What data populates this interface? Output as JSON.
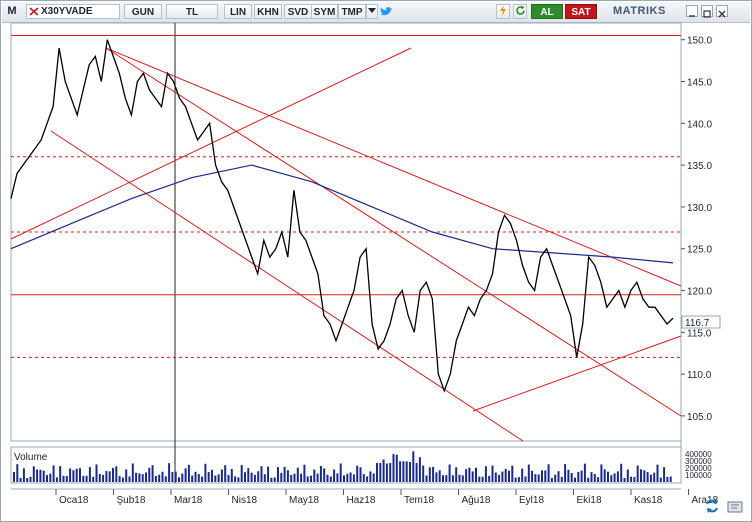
{
  "toolbar": {
    "logo": "M",
    "symbol": "X30YVADE",
    "period": "GUN",
    "currency": "TL",
    "buttons": [
      "LIN",
      "KHN",
      "SVD",
      "SYM",
      "TMP"
    ],
    "buy_label": "AL",
    "sell_label": "SAT",
    "brand": "MATRIKS"
  },
  "colors": {
    "candle": "#000000",
    "ma": "#1a2a8a",
    "trend": "#d42020",
    "buy": "#2e8b2e",
    "sell": "#c0161b"
  },
  "chart_data": {
    "type": "line",
    "y_ticks": [
      150,
      145,
      140,
      135,
      130,
      125,
      120,
      115,
      110,
      105
    ],
    "ylim": [
      102,
      152
    ],
    "last_price": "116.7",
    "x_ticks": [
      "Oca18",
      "Şub18",
      "Mar18",
      "Nis18",
      "May18",
      "Haz18",
      "Tem18",
      "Ağu18",
      "Eyl18",
      "Eki18",
      "Kas18",
      "Ara18"
    ],
    "volume_label": "Volume",
    "volume_ticks": [
      "400000",
      "300000",
      "200000",
      "100000"
    ],
    "series": [
      {
        "x": [
          0,
          6,
          12,
          18,
          24,
          30,
          36,
          42,
          48,
          54,
          60,
          66,
          72,
          78,
          84,
          90,
          96,
          102,
          108,
          114,
          120,
          126,
          132,
          138,
          144,
          150,
          156,
          162,
          168,
          174,
          180,
          186,
          192,
          198,
          204,
          210,
          216,
          222,
          228,
          234,
          240,
          246,
          252,
          258,
          264,
          270,
          276,
          282,
          288,
          294,
          300,
          306,
          312,
          318,
          324,
          330,
          336,
          342,
          348,
          354,
          360,
          366,
          372,
          378,
          384,
          390,
          396,
          402,
          408,
          414,
          420,
          426,
          432,
          438,
          444,
          450,
          456,
          462,
          468,
          474,
          480,
          486,
          492,
          498,
          504,
          510,
          516,
          522,
          528,
          534,
          540,
          546,
          552,
          558,
          564,
          570,
          576,
          582,
          588,
          594,
          600,
          606,
          612,
          618,
          624,
          630,
          636,
          642,
          648,
          654,
          660
        ],
        "values": [
          131,
          134,
          135,
          136,
          137,
          138,
          140,
          142,
          149,
          145,
          143,
          141,
          144,
          147,
          148,
          145,
          150,
          148,
          146,
          143,
          141,
          145,
          146,
          144,
          143,
          142,
          146,
          145,
          143,
          142,
          140,
          138,
          139,
          140,
          135,
          133,
          132,
          130,
          128,
          126,
          124,
          122,
          126,
          124,
          125,
          127,
          124,
          132,
          127,
          126,
          124,
          122,
          117,
          116,
          114,
          116,
          118,
          120,
          124,
          125,
          116,
          113,
          114,
          116,
          119,
          120,
          117,
          115,
          120,
          121,
          119,
          110,
          108,
          110,
          114,
          116,
          118,
          117,
          119,
          120,
          122,
          127,
          129,
          128,
          126,
          123,
          121,
          120,
          124,
          125,
          123,
          121,
          119,
          117,
          112,
          116,
          124,
          123,
          121,
          118,
          119,
          120,
          118,
          120,
          121,
          119,
          118,
          118,
          117,
          116,
          116.7
        ]
      },
      {
        "x": [
          0,
          60,
          120,
          180,
          240,
          300,
          360,
          420,
          480,
          540,
          600,
          660
        ],
        "values": [
          125,
          128,
          131,
          133.5,
          135,
          133,
          130,
          127,
          125,
          124.5,
          124,
          123.3
        ]
      }
    ],
    "hlines": [
      150.5,
      136,
      127,
      119.5,
      112
    ]
  }
}
